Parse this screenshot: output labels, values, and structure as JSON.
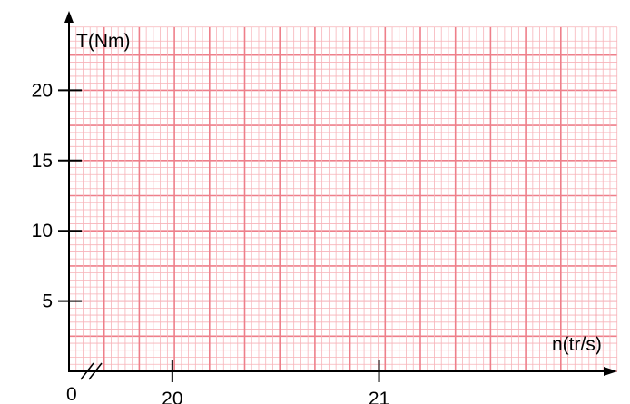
{
  "chart_data": {
    "type": "line",
    "title": "",
    "xlabel": "n(tr/s)",
    "ylabel": "T(Nm)",
    "origin_label": "0",
    "x_axis_break": true,
    "xlim": [
      19.5,
      22.1
    ],
    "ylim": [
      0,
      25
    ],
    "x_ticks": [
      20,
      21
    ],
    "x_tick_labels": [
      "20",
      "21"
    ],
    "y_ticks": [
      5,
      10,
      15,
      20
    ],
    "y_tick_labels": [
      "5",
      "10",
      "15",
      "20"
    ],
    "grid": true,
    "grid_style": "millimetre graph paper",
    "series": []
  },
  "colors": {
    "grid_minor": "#f7b3b9",
    "grid_major": "#ee7f8a",
    "axis": "#000000"
  }
}
